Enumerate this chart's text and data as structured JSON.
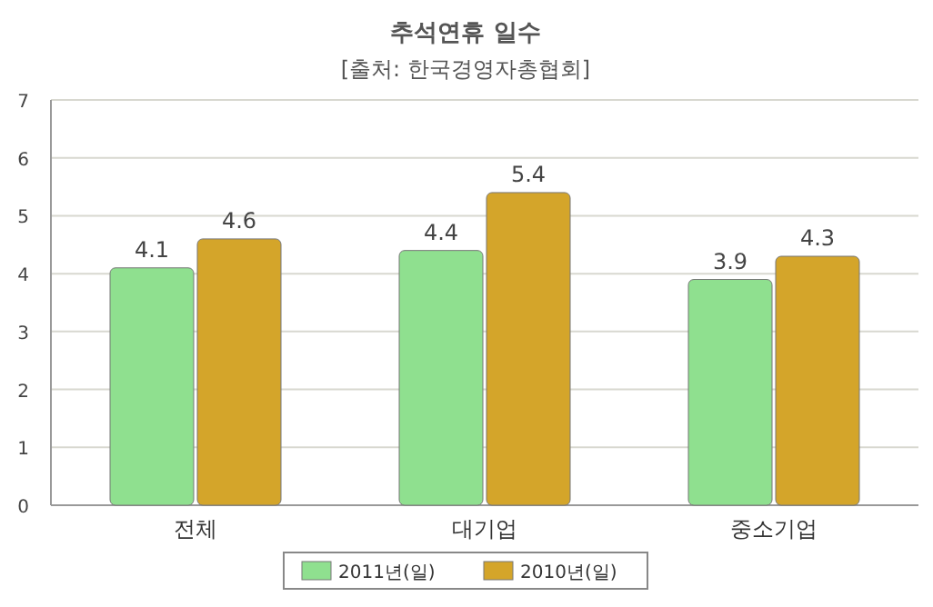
{
  "chart_data": {
    "type": "bar",
    "title": "추석연휴 일수",
    "subtitle": "[출처: 한국경영자총협회]",
    "categories": [
      "전체",
      "대기업",
      "중소기업"
    ],
    "series": [
      {
        "name": "2011년(일)",
        "color": "#8fe08f",
        "values": [
          4.1,
          4.4,
          3.9
        ]
      },
      {
        "name": "2010년(일)",
        "color": "#d4a52a",
        "values": [
          4.6,
          5.4,
          4.3
        ]
      }
    ],
    "ylim": [
      0,
      7
    ],
    "yticks": [
      0,
      1,
      2,
      3,
      4,
      5,
      6,
      7
    ],
    "grid": "y",
    "legend": "bottom",
    "data_labels": true
  }
}
